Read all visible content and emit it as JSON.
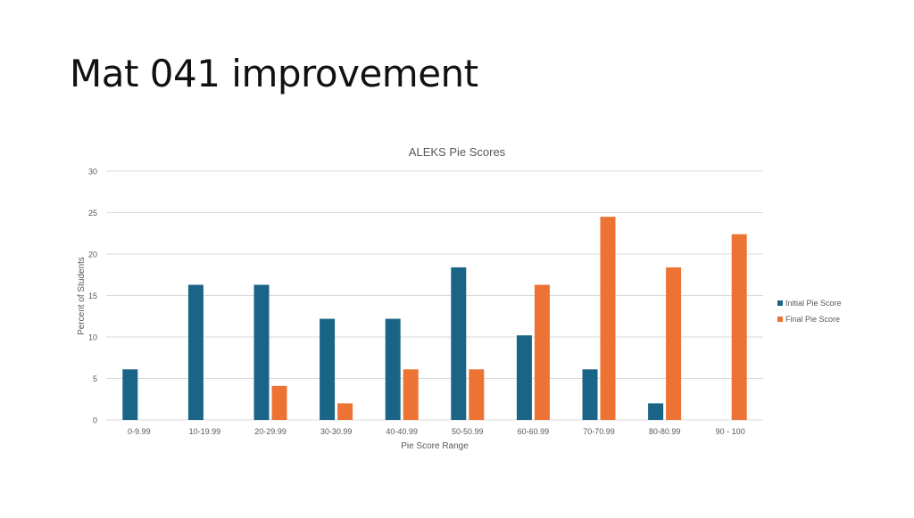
{
  "slide": {
    "title": "Mat 041 improvement"
  },
  "colors": {
    "initial": "#1a6587",
    "final": "#ec7333",
    "grid": "#d9d9d9",
    "text": "#595959"
  },
  "chart_data": {
    "type": "bar",
    "title": "ALEKS Pie Scores",
    "xlabel": "Pie Score Range",
    "ylabel": "Percent of Students",
    "ylim": [
      0,
      30
    ],
    "yticks": [
      0,
      5,
      10,
      15,
      20,
      25,
      30
    ],
    "grid": true,
    "legend_position": "right",
    "categories": [
      "0-9.99",
      "10-19.99",
      "20-29.99",
      "30-30.99",
      "40-40.99",
      "50-50.99",
      "60-60.99",
      "70-70.99",
      "80-80.99",
      "90 - 100"
    ],
    "series": [
      {
        "name": "Initial Pie Score",
        "values": [
          6.1,
          16.3,
          16.3,
          12.2,
          12.2,
          18.4,
          10.2,
          6.1,
          2.0,
          0
        ]
      },
      {
        "name": "Final Pie Score",
        "values": [
          0,
          0,
          4.1,
          2.0,
          6.1,
          6.1,
          16.3,
          24.5,
          18.4,
          22.4
        ]
      }
    ]
  }
}
